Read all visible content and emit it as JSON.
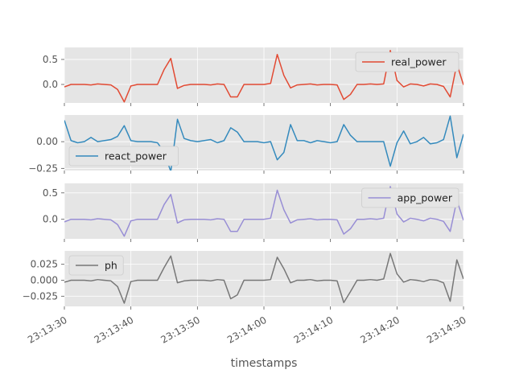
{
  "chart_data": {
    "type": "line",
    "xlabel": "timestamps",
    "x_ticks": [
      "23:13:30",
      "23:13:40",
      "23:13:50",
      "23:14:00",
      "23:14:10",
      "23:14:20",
      "23:14:30"
    ],
    "x_range_seconds": [
      0,
      60
    ],
    "sample_interval_seconds": 1,
    "grid": true,
    "panels": [
      {
        "name": "real_power",
        "color": "#e24a33",
        "legend_position": "upper right",
        "ylim": [
          -0.37,
          0.74
        ],
        "yticks": [
          0.0,
          0.5
        ],
        "ytick_labels": [
          "0.0",
          "0.5"
        ],
        "values": [
          -0.05,
          0.0,
          0.0,
          0.0,
          -0.01,
          0.01,
          0.0,
          -0.01,
          -0.1,
          -0.35,
          -0.03,
          0.0,
          0.0,
          0.0,
          0.0,
          0.3,
          0.52,
          -0.08,
          -0.02,
          0.0,
          0.0,
          0.0,
          -0.01,
          0.01,
          0.0,
          -0.25,
          -0.25,
          0.0,
          0.0,
          0.0,
          0.0,
          0.02,
          0.6,
          0.18,
          -0.07,
          -0.01,
          0.0,
          0.01,
          -0.01,
          0.0,
          0.0,
          -0.01,
          -0.3,
          -0.2,
          0.0,
          0.0,
          0.01,
          0.0,
          0.01,
          0.68,
          0.08,
          -0.05,
          0.01,
          0.0,
          -0.03,
          0.01,
          0.0,
          -0.04,
          -0.25,
          0.41,
          -0.01
        ]
      },
      {
        "name": "react_power",
        "color": "#348abd",
        "legend_position": "lower left",
        "ylim": [
          -0.27,
          0.25
        ],
        "yticks": [
          -0.25,
          0.0
        ],
        "ytick_labels": [
          "−0.25",
          "0.00"
        ],
        "values": [
          0.2,
          0.01,
          -0.01,
          0.0,
          0.04,
          0.0,
          0.01,
          0.02,
          0.05,
          0.15,
          0.01,
          0.0,
          0.0,
          0.0,
          -0.01,
          -0.1,
          -0.28,
          0.21,
          0.03,
          0.01,
          0.0,
          0.01,
          0.02,
          -0.01,
          0.01,
          0.13,
          0.09,
          0.0,
          0.0,
          0.0,
          -0.01,
          0.0,
          -0.17,
          -0.1,
          0.16,
          0.01,
          0.01,
          -0.01,
          0.01,
          0.0,
          -0.01,
          0.0,
          0.16,
          0.06,
          0.0,
          0.0,
          0.0,
          0.0,
          0.0,
          -0.23,
          -0.01,
          0.1,
          -0.02,
          0.0,
          0.04,
          -0.02,
          -0.01,
          0.02,
          0.24,
          -0.15,
          0.07
        ]
      },
      {
        "name": "app_power",
        "color": "#988ed5",
        "legend_position": "upper right",
        "ylim": [
          -0.37,
          0.68
        ],
        "yticks": [
          0.0,
          0.5
        ],
        "ytick_labels": [
          "0.0",
          "0.5"
        ],
        "values": [
          -0.05,
          0.0,
          0.0,
          0.0,
          -0.01,
          0.01,
          0.0,
          -0.01,
          -0.1,
          -0.32,
          -0.03,
          0.0,
          0.0,
          0.0,
          0.0,
          0.28,
          0.47,
          -0.07,
          -0.01,
          0.0,
          0.0,
          0.0,
          -0.01,
          0.01,
          0.0,
          -0.23,
          -0.23,
          0.0,
          0.0,
          0.0,
          0.0,
          0.02,
          0.55,
          0.18,
          -0.07,
          -0.01,
          0.0,
          0.01,
          -0.01,
          0.0,
          0.0,
          -0.01,
          -0.28,
          -0.18,
          0.0,
          0.0,
          0.01,
          0.0,
          0.02,
          0.62,
          0.1,
          -0.05,
          0.02,
          0.0,
          -0.03,
          0.02,
          0.0,
          -0.04,
          -0.23,
          0.36,
          -0.02
        ]
      },
      {
        "name": "ph",
        "color": "#777777",
        "legend_position": "upper left",
        "ylim": [
          -0.041,
          0.046
        ],
        "yticks": [
          -0.025,
          0.0,
          0.025
        ],
        "ytick_labels": [
          "−0.025",
          "0.000",
          "0.025"
        ],
        "values": [
          -0.003,
          0.0,
          0.0,
          0.0,
          -0.001,
          0.001,
          0.0,
          -0.001,
          -0.01,
          -0.036,
          -0.002,
          0.0,
          0.0,
          0.0,
          0.0,
          0.02,
          0.038,
          -0.004,
          -0.001,
          0.0,
          0.0,
          0.0,
          -0.001,
          0.001,
          0.0,
          -0.029,
          -0.023,
          0.0,
          0.0,
          0.0,
          0.0,
          0.001,
          0.036,
          0.018,
          -0.004,
          0.0,
          0.0,
          0.001,
          -0.001,
          0.0,
          0.0,
          -0.001,
          -0.035,
          -0.018,
          0.0,
          0.0,
          0.001,
          0.0,
          0.002,
          0.042,
          0.01,
          -0.003,
          0.001,
          0.0,
          -0.002,
          0.001,
          0.0,
          -0.004,
          -0.033,
          0.032,
          0.002
        ]
      }
    ]
  }
}
